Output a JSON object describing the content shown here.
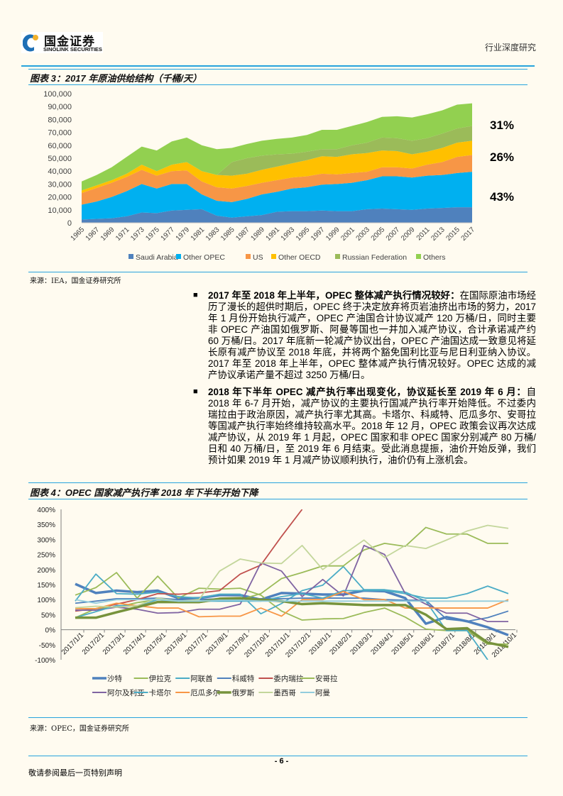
{
  "header": {
    "logo_cn": "国金证券",
    "logo_en": "SINOLINK SECURITIES",
    "section": "行业深度研究",
    "accent": "#27a3dd"
  },
  "figure3": {
    "title": "图表 3：2017 年原油供给结构（千桶/天）",
    "source": "来源：IEA，国金证券研究所",
    "shares": [
      {
        "label": "31%",
        "color": "#9bbb59"
      },
      {
        "label": "26%",
        "color": "#f79646"
      },
      {
        "label": "43%",
        "color": "#4f81bd"
      }
    ]
  },
  "figure4": {
    "title": "图表 4：OPEC 国家减产执行率 2018 年下半年开始下降",
    "source": "来源：OPEC，国金证券研究所"
  },
  "body": {
    "p1_head": "2017 年至 2018 年上半年，OPEC 整体减产执行情况较好：",
    "p1_text": "在国际原油市场经历了漫长的超供时期后，OPEC 终于决定放弃将页岩油挤出市场的努力，2017 年 1 月份开始执行减产，OPEC 产油国合计协议减产 120 万桶/日，同时主要非 OPEC 产油国如俄罗斯、阿曼等国也一并加入减产协议，合计承诺减产约 60 万桶/日。2017 年底新一轮减产协议出台，OPEC 产油国达成一致意见将延长原有减产协议至 2018 年底，并将两个豁免国利比亚与尼日利亚纳入协议。2017 年至 2018 年上半年，OPEC 整体减产执行情况较好。OPEC 达成的减产协议承诺产量不超过 3250 万桶/日。",
    "p2_head": "2018 年下半年 OPEC 减产执行率出现变化，协议延长至 2019 年 6 月：",
    "p2_text": "自 2018 年 6-7 月开始，减产协议的主要执行国减产执行率开始降低。不过委内瑞拉由于政治原因，减产执行率尤其高。卡塔尔、科威特、厄瓜多尔、安哥拉等国减产执行率始终维持较高水平。2018 年 12 月，OPEC 政策会议再次达成减产协议，从 2019 年 1 月起，OPEC 国家和非 OPEC 国家分别减产 80 万桶/日和 40 万桶/日，至 2019 年 6 月结束。受此消息提振，油价开始反弹，我们预计如果 2019 年 1 月减产协议顺利执行，油价仍有上涨机会。"
  },
  "footer": {
    "page": "- 6 -",
    "disclaimer": "敬请参阅最后一页特别声明"
  },
  "chart_data": [
    {
      "type": "area",
      "stacked": true,
      "x": [
        1965,
        1967,
        1969,
        1971,
        1973,
        1975,
        1977,
        1979,
        1981,
        1983,
        1985,
        1987,
        1989,
        1991,
        1993,
        1995,
        1997,
        1999,
        2001,
        2003,
        2005,
        2007,
        2009,
        2011,
        2013,
        2015,
        2017
      ],
      "x_tick_labels": [
        "1965",
        "1967",
        "1969",
        "1971",
        "1973",
        "1975",
        "1977",
        "1979",
        "1981",
        "1983",
        "1985",
        "1987",
        "1989",
        "1991",
        "1993",
        "1995",
        "1997",
        "1999",
        "2001",
        "2003",
        "2005",
        "2007",
        "2009",
        "2011",
        "2013",
        "2015",
        "2017"
      ],
      "ylim": [
        0,
        100000
      ],
      "y_tick_labels": [
        "0",
        "10,000",
        "20,000",
        "30,000",
        "40,000",
        "50,000",
        "60,000",
        "70,000",
        "80,000",
        "90,000",
        "100,000"
      ],
      "legend": "bottom",
      "grid": false,
      "series": [
        {
          "name": "Saudi Arabia",
          "color": "#4f81bd",
          "values": [
            2500,
            3000,
            3500,
            5000,
            8000,
            7500,
            9500,
            10000,
            10500,
            5500,
            4000,
            5000,
            6000,
            8500,
            9000,
            9000,
            9500,
            9000,
            9000,
            10500,
            11000,
            10500,
            10000,
            11000,
            11500,
            12000,
            12000
          ]
        },
        {
          "name": "Other OPEC",
          "color": "#00b0f0",
          "values": [
            11500,
            13500,
            16500,
            19500,
            22000,
            19000,
            20500,
            20000,
            11500,
            11500,
            12000,
            13500,
            16000,
            15500,
            17500,
            18500,
            20000,
            21000,
            22000,
            22500,
            25000,
            25500,
            25000,
            25500,
            25500,
            26500,
            27500
          ]
        },
        {
          "name": "US",
          "color": "#f79646",
          "values": [
            9000,
            10500,
            11000,
            11000,
            11000,
            10000,
            10000,
            10500,
            10000,
            10500,
            10500,
            10000,
            9000,
            9000,
            8500,
            8500,
            8500,
            7500,
            7500,
            6500,
            7000,
            7000,
            7000,
            8500,
            10000,
            12500,
            13000
          ]
        },
        {
          "name": "Other OECD",
          "color": "#ffc000",
          "values": [
            2000,
            2000,
            2000,
            2500,
            4000,
            3500,
            5000,
            6500,
            8000,
            9500,
            10000,
            9500,
            10000,
            10500,
            11000,
            12500,
            13500,
            13500,
            14500,
            14500,
            13000,
            12500,
            11000,
            10000,
            11000,
            11000,
            11000
          ]
        },
        {
          "name": "Russian Federation",
          "color": "#9bbb59",
          "values": [
            0,
            0,
            0,
            0,
            0,
            0,
            0,
            0,
            0,
            0,
            10500,
            12000,
            11000,
            9500,
            7500,
            6500,
            5500,
            6000,
            7000,
            8000,
            10000,
            10000,
            10500,
            10500,
            11000,
            11000,
            11500
          ]
        },
        {
          "name": "Others",
          "color": "#92d050",
          "values": [
            7000,
            8000,
            10000,
            13000,
            14000,
            16000,
            18000,
            19000,
            20000,
            20000,
            11000,
            11000,
            11500,
            12000,
            12500,
            13000,
            15000,
            15000,
            15000,
            16000,
            16000,
            17000,
            18000,
            18500,
            18000,
            18500,
            17500
          ]
        }
      ]
    },
    {
      "type": "line",
      "categories": [
        "2017/1/1",
        "2017/2/1",
        "2017/3/1",
        "2017/4/1",
        "2017/5/1",
        "2017/6/1",
        "2017/7/1",
        "2017/8/1",
        "2017/9/1",
        "2017/10/1",
        "2017/11/1",
        "2017/12/1",
        "2018/1/1",
        "2018/2/1",
        "2018/3/1",
        "2018/4/1",
        "2018/5/1",
        "2018/6/1",
        "2018/7/1",
        "2018/8/1",
        "2018/9/1",
        "2018/10/1"
      ],
      "ylim": [
        -100,
        400
      ],
      "y_unit": "%",
      "y_tick_labels": [
        "-100%",
        "-50%",
        "0%",
        "50%",
        "100%",
        "150%",
        "200%",
        "250%",
        "300%",
        "350%",
        "400%"
      ],
      "legend": "bottom",
      "grid": false,
      "series": [
        {
          "name": "沙特",
          "color": "#4f81bd",
          "thick": true,
          "values": [
            152,
            122,
            130,
            125,
            130,
            105,
            105,
            115,
            115,
            100,
            122,
            120,
            117,
            117,
            130,
            128,
            105,
            20,
            42,
            28,
            8,
            -18
          ]
        },
        {
          "name": "伊拉克",
          "color": "#9bbb59",
          "values": [
            115,
            140,
            190,
            105,
            178,
            105,
            138,
            135,
            138,
            115,
            62,
            32,
            36,
            37,
            57,
            72,
            42,
            2,
            -3,
            -3,
            -48,
            -48
          ]
        },
        {
          "name": "阿联酋",
          "color": "#4bacc6",
          "values": [
            95,
            185,
            120,
            118,
            125,
            110,
            105,
            118,
            118,
            53,
            87,
            130,
            148,
            210,
            133,
            133,
            125,
            95,
            -3,
            -3,
            -100,
            null
          ]
        },
        {
          "name": "科威特",
          "color": "#4f81bd",
          "values": [
            88,
            95,
            103,
            103,
            105,
            100,
            100,
            103,
            103,
            103,
            103,
            105,
            105,
            105,
            105,
            100,
            98,
            98,
            35,
            28,
            40,
            62
          ]
        },
        {
          "name": "委内瑞拉",
          "color": "#c0504d",
          "values": [
            62,
            70,
            85,
            100,
            120,
            118,
            122,
            130,
            185,
            215,
            310,
            400,
            null,
            null,
            null,
            null,
            null,
            null,
            null,
            null,
            null,
            null
          ]
        },
        {
          "name": "安哥拉",
          "color": "#9bbb59",
          "values": [
            40,
            70,
            75,
            90,
            100,
            90,
            90,
            100,
            100,
            120,
            170,
            190,
            212,
            212,
            265,
            287,
            277,
            340,
            318,
            318,
            287,
            287
          ]
        },
        {
          "name": "阿尔及利亚",
          "color": "#8064a2",
          "values": [
            65,
            65,
            75,
            68,
            55,
            57,
            68,
            68,
            85,
            222,
            195,
            110,
            167,
            112,
            280,
            250,
            120,
            85,
            55,
            55,
            27,
            27
          ]
        },
        {
          "name": "卡塔尔",
          "color": "#4bacc6",
          "values": [
            40,
            60,
            80,
            80,
            100,
            95,
            95,
            95,
            95,
            95,
            110,
            120,
            105,
            130,
            130,
            130,
            120,
            105,
            105,
            120,
            145,
            120
          ]
        },
        {
          "name": "厄瓜多尔",
          "color": "#f79646",
          "values": [
            70,
            70,
            88,
            80,
            72,
            72,
            43,
            45,
            45,
            72,
            45,
            100,
            100,
            127,
            100,
            100,
            72,
            72,
            72,
            72,
            72,
            100
          ]
        },
        {
          "name": "俄罗斯",
          "color": "#77933c",
          "thick": true,
          "values": [
            40,
            40,
            58,
            75,
            92,
            92,
            92,
            103,
            105,
            100,
            95,
            85,
            88,
            85,
            82,
            82,
            82,
            50,
            2,
            5,
            -43,
            -57
          ]
        },
        {
          "name": "墨西哥",
          "color": "#c3d69b",
          "values": [
            73,
            78,
            75,
            80,
            105,
            95,
            100,
            195,
            235,
            222,
            220,
            280,
            200,
            250,
            298,
            240,
            280,
            270,
            298,
            328,
            347,
            337
          ]
        },
        {
          "name": "阿曼",
          "color": "#93cddd",
          "values": [
            100,
            88,
            100,
            100,
            100,
            95,
            95,
            98,
            98,
            95,
            95,
            95,
            95,
            95,
            95,
            95,
            95,
            95,
            95,
            95,
            95,
            95
          ]
        }
      ]
    }
  ]
}
